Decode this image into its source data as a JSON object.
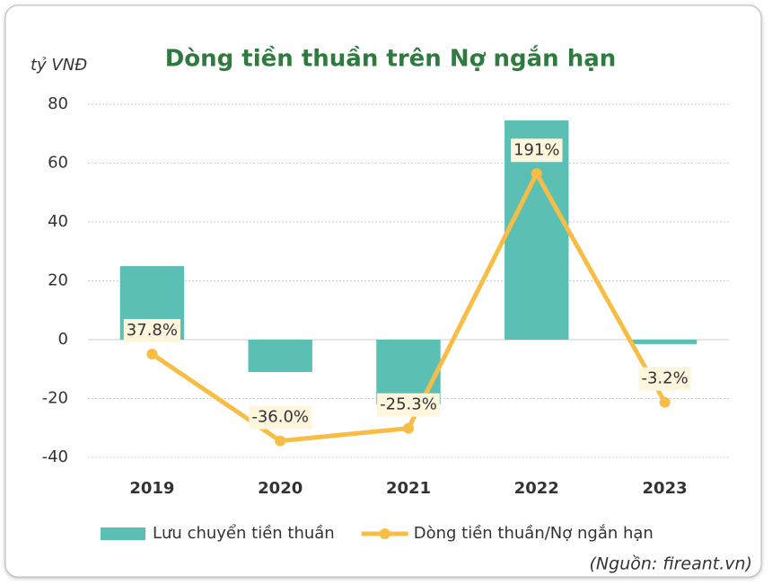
{
  "chart_data": {
    "type": "bar",
    "title": "Dòng tiền thuần trên Nợ ngắn hạn",
    "y_axis_label": "tỷ VNĐ",
    "source": "(Nguồn: fireant.vn)",
    "categories": [
      "2019",
      "2020",
      "2021",
      "2022",
      "2023"
    ],
    "series": [
      {
        "name": "Lưu chuyển tiền thuần",
        "type": "bar",
        "color": "#5cbfb3",
        "values": [
          25,
          -11,
          -22,
          74.5,
          -1.5
        ]
      },
      {
        "name": "Dòng tiền thuần/Nợ ngắn hạn",
        "type": "line",
        "axis": "y2",
        "color": "#f7bd45",
        "values": [
          37.8,
          -36.0,
          -25.3,
          191,
          -3.2
        ],
        "value_labels": [
          "37.8%",
          "-36.0%",
          "-25.3%",
          "191%",
          "-3.2%"
        ]
      }
    ],
    "ylim": [
      -40,
      80
    ],
    "yticks": [
      -40,
      -20,
      0,
      20,
      40,
      60,
      80
    ],
    "y2lim": [
      -50,
      250
    ],
    "grid": true,
    "legend": "bottom"
  }
}
